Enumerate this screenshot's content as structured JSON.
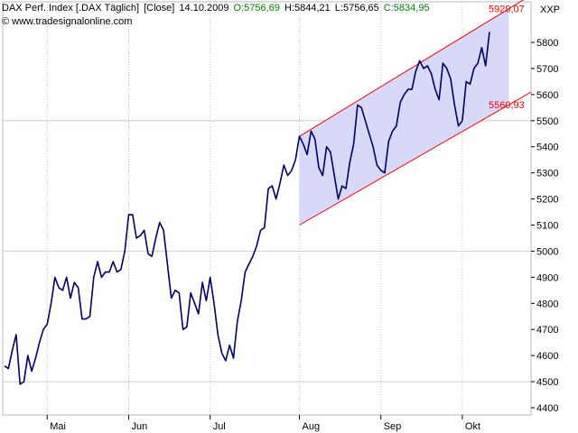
{
  "header": {
    "title": "DAX Perf. Index [.DAX  Täglich]",
    "mode": "[Close]",
    "date": "14.10.2009",
    "open": "O:5756,69",
    "high": "H:5844,21",
    "low": "L:5756,65",
    "close": "C:5834,95"
  },
  "copyright": "© www.tradesignalonline.com",
  "colors": {
    "price": "#000066",
    "channel_fill": "#d8d8f8",
    "channel_line": "#ff0000",
    "grid": "#bfd6bf",
    "green": "#008000"
  },
  "chart_data": {
    "type": "line",
    "title": "DAX Perf. Index [.DAX  Täglich]",
    "ylabel": "XXP",
    "ylim": [
      4400,
      5930
    ],
    "y_ticks": [
      4400,
      4500,
      4600,
      4700,
      4800,
      4900,
      5000,
      5100,
      5200,
      5300,
      5400,
      5500,
      5600,
      5700,
      5800
    ],
    "months": [
      {
        "label": "Mai",
        "index": 11
      },
      {
        "label": "Jun",
        "index": 32
      },
      {
        "label": "Jul",
        "index": 53
      },
      {
        "label": "Aug",
        "index": 76
      },
      {
        "label": "Sep",
        "index": 97
      },
      {
        "label": "Okt",
        "index": 118
      }
    ],
    "channel": {
      "start_index": 76,
      "end_index": 130,
      "upper": [
        5440,
        5929.07
      ],
      "lower": [
        5100,
        5560.93
      ],
      "upper_label": "5929,07",
      "lower_label": "5560,93"
    },
    "series": [
      {
        "values": [
          4560,
          4550,
          4620,
          4680,
          4490,
          4500,
          4600,
          4540,
          4590,
          4650,
          4700,
          4720,
          4800,
          4900,
          4860,
          4850,
          4900,
          4820,
          4880,
          4860,
          4740,
          4740,
          4750,
          4900,
          4960,
          4900,
          4920,
          4920,
          4960,
          4920,
          4930,
          5000,
          5140,
          5140,
          5050,
          5060,
          5080,
          4990,
          4980,
          5050,
          5110,
          5080,
          4950,
          4820,
          4850,
          4840,
          4700,
          4710,
          4840,
          4800,
          4760,
          4880,
          4810,
          4900,
          4800,
          4680,
          4610,
          4580,
          4640,
          4590,
          4730,
          4810,
          4920,
          4950,
          4980,
          5020,
          5080,
          5090,
          5240,
          5250,
          5200,
          5260,
          5330,
          5290,
          5310,
          5350,
          5440,
          5410,
          5370,
          5460,
          5430,
          5320,
          5290,
          5400,
          5380,
          5290,
          5200,
          5250,
          5240,
          5340,
          5410,
          5560,
          5550,
          5500,
          5450,
          5400,
          5330,
          5310,
          5300,
          5420,
          5460,
          5480,
          5570,
          5600,
          5620,
          5620,
          5690,
          5730,
          5700,
          5710,
          5680,
          5620,
          5580,
          5720,
          5700,
          5660,
          5560,
          5480,
          5500,
          5650,
          5640,
          5700,
          5720,
          5780,
          5710,
          5840
        ]
      }
    ]
  }
}
